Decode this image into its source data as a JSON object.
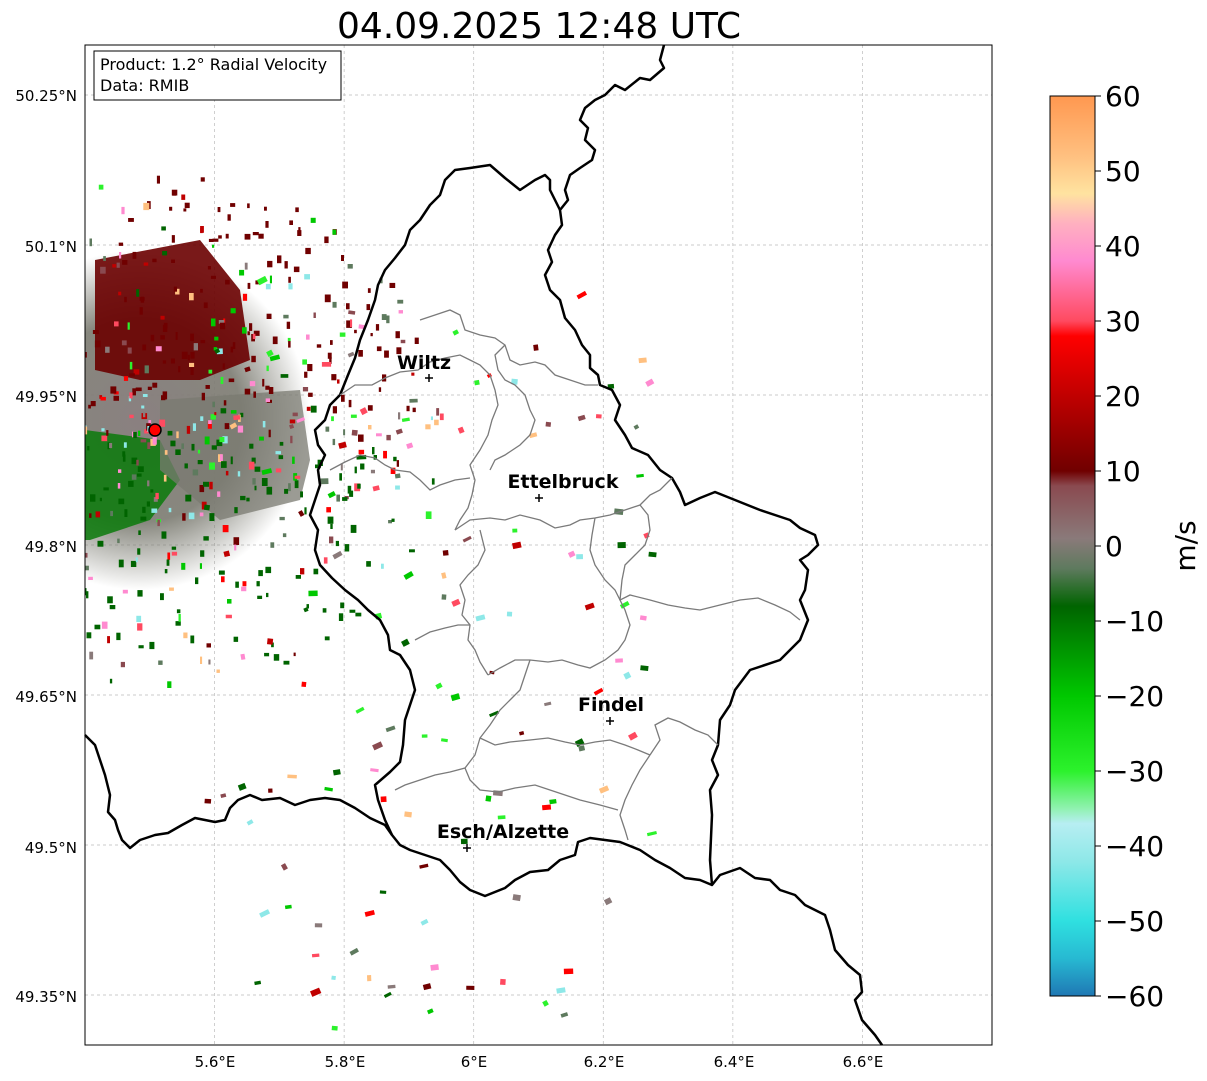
{
  "title": "04.09.2025 12:48 UTC",
  "info": {
    "product": "Product: 1.2° Radial Velocity",
    "data_source": "Data: RMIB"
  },
  "map": {
    "lon_range": [
      5.4,
      6.8
    ],
    "lat_range": [
      49.3,
      50.3
    ],
    "lon_ticks": [
      "5.6°E",
      "5.8°E",
      "6°E",
      "6.2°E",
      "6.4°E",
      "6.6°E"
    ],
    "lat_ticks": [
      "50.25°N",
      "50.1°N",
      "49.95°N",
      "49.8°N",
      "49.65°N",
      "49.5°N",
      "49.35°N"
    ],
    "grid": true,
    "radar_site": {
      "lon": 5.505,
      "lat": 49.914
    },
    "cities": [
      {
        "name": "Wiltz",
        "lon": 5.933,
        "lat": 49.967
      },
      {
        "name": "Ettelbruck",
        "lon": 6.104,
        "lat": 49.848
      },
      {
        "name": "Findel",
        "lon": 6.211,
        "lat": 49.626
      },
      {
        "name": "Esch/Alzette",
        "lon": 5.981,
        "lat": 49.499
      }
    ]
  },
  "colorbar": {
    "label": "m/s",
    "min": -60,
    "max": 60,
    "ticks": [
      "60",
      "50",
      "40",
      "30",
      "20",
      "10",
      "0",
      "−10",
      "−20",
      "−30",
      "−40",
      "−50",
      "−60"
    ],
    "stops": [
      {
        "v": -60,
        "c": "#1f78b4"
      },
      {
        "v": -55,
        "c": "#27b9d2"
      },
      {
        "v": -50,
        "c": "#2fe0e0"
      },
      {
        "v": -42,
        "c": "#8ee8e8"
      },
      {
        "v": -37,
        "c": "#b7eef2"
      },
      {
        "v": -35,
        "c": "#90f2b0"
      },
      {
        "v": -30,
        "c": "#2cf22c"
      },
      {
        "v": -20,
        "c": "#00c800"
      },
      {
        "v": -8,
        "c": "#006400"
      },
      {
        "v": -3,
        "c": "#5e7a5e"
      },
      {
        "v": 1,
        "c": "#8a7a7a"
      },
      {
        "v": 8,
        "c": "#8a4a50"
      },
      {
        "v": 10,
        "c": "#700000"
      },
      {
        "v": 20,
        "c": "#c00000"
      },
      {
        "v": 28,
        "c": "#ff0000"
      },
      {
        "v": 30,
        "c": "#ff4a60"
      },
      {
        "v": 38,
        "c": "#ff8ad0"
      },
      {
        "v": 43,
        "c": "#ffb0c0"
      },
      {
        "v": 47,
        "c": "#ffe3a0"
      },
      {
        "v": 52,
        "c": "#ffc080"
      },
      {
        "v": 60,
        "c": "#ff9850"
      }
    ]
  }
}
